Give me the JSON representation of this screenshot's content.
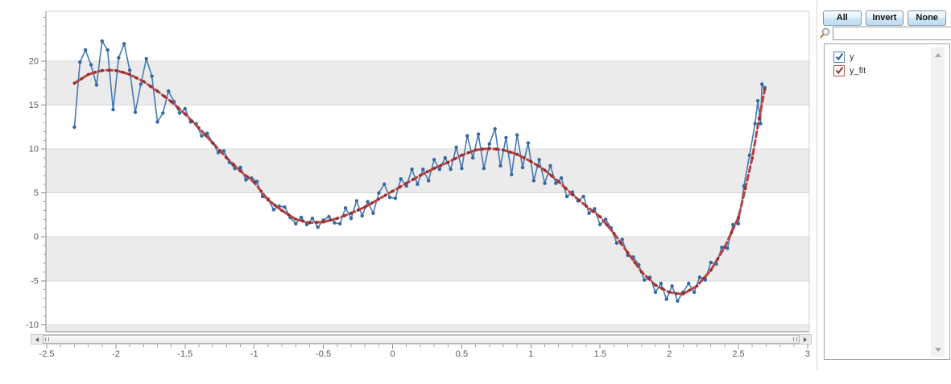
{
  "panel": {
    "buttons": [
      {
        "label": "All"
      },
      {
        "label": "Invert"
      },
      {
        "label": "None"
      }
    ],
    "search": {
      "value": "",
      "placeholder": ""
    },
    "series_list": [
      {
        "label": "y",
        "checked": true,
        "box_color": "#5b87c5",
        "check_color": "#2c5d9d"
      },
      {
        "label": "y_fit",
        "checked": true,
        "box_color": "#c0504d",
        "check_color": "#9e3032"
      }
    ]
  },
  "chart_data": {
    "type": "line",
    "title": "",
    "xlabel": "",
    "ylabel": "",
    "legend_position": "right-panel-checklist",
    "grid": "horizontal-bands",
    "band_color": "#ebebeb",
    "gridline_color": "#d9d9d9",
    "x_axis": {
      "min": -2.506,
      "max": 3.012,
      "major_ticks": [
        -2.5,
        -2,
        -1.5,
        -1,
        -0.5,
        0,
        0.5,
        1,
        1.5,
        2,
        2.5,
        3
      ],
      "minor_step": 0.1
    },
    "y_axis": {
      "min": -10.8,
      "max": 25.7,
      "major_ticks": [
        -10,
        -5,
        0,
        5,
        10,
        15,
        20
      ],
      "minor_step": 1
    },
    "bands": [
      [
        20,
        15
      ],
      [
        10,
        5
      ],
      [
        0,
        -5
      ],
      [
        -10,
        -10.8
      ]
    ],
    "series": [
      {
        "name": "y",
        "color": "#4579b2",
        "marker_color": "#35689f",
        "style": "line-markers",
        "points": [
          [
            -2.3,
            12.5
          ],
          [
            -2.26,
            19.9
          ],
          [
            -2.22,
            21.3
          ],
          [
            -2.18,
            19.6
          ],
          [
            -2.14,
            17.3
          ],
          [
            -2.1,
            22.3
          ],
          [
            -2.06,
            21.3
          ],
          [
            -2.02,
            14.5
          ],
          [
            -1.98,
            20.4
          ],
          [
            -1.94,
            22.0
          ],
          [
            -1.9,
            19.0
          ],
          [
            -1.86,
            14.2
          ],
          [
            -1.82,
            17.4
          ],
          [
            -1.78,
            20.3
          ],
          [
            -1.74,
            18.3
          ],
          [
            -1.7,
            13.1
          ],
          [
            -1.66,
            14.1
          ],
          [
            -1.62,
            16.6
          ],
          [
            -1.58,
            15.4
          ],
          [
            -1.54,
            14.1
          ],
          [
            -1.5,
            14.6
          ],
          [
            -1.46,
            13.1
          ],
          [
            -1.42,
            12.9
          ],
          [
            -1.38,
            11.5
          ],
          [
            -1.34,
            11.8
          ],
          [
            -1.3,
            10.7
          ],
          [
            -1.26,
            9.6
          ],
          [
            -1.22,
            9.8
          ],
          [
            -1.18,
            8.5
          ],
          [
            -1.14,
            7.8
          ],
          [
            -1.1,
            7.9
          ],
          [
            -1.06,
            6.5
          ],
          [
            -1.02,
            6.7
          ],
          [
            -0.98,
            6.3
          ],
          [
            -0.94,
            4.6
          ],
          [
            -0.9,
            4.3
          ],
          [
            -0.86,
            3.1
          ],
          [
            -0.82,
            3.5
          ],
          [
            -0.78,
            3.4
          ],
          [
            -0.74,
            2.2
          ],
          [
            -0.7,
            1.5
          ],
          [
            -0.66,
            2.2
          ],
          [
            -0.62,
            1.4
          ],
          [
            -0.58,
            2.1
          ],
          [
            -0.54,
            1.1
          ],
          [
            -0.5,
            1.9
          ],
          [
            -0.46,
            2.3
          ],
          [
            -0.42,
            1.6
          ],
          [
            -0.38,
            1.5
          ],
          [
            -0.34,
            3.3
          ],
          [
            -0.3,
            2.1
          ],
          [
            -0.26,
            4.1
          ],
          [
            -0.22,
            2.4
          ],
          [
            -0.18,
            4.0
          ],
          [
            -0.14,
            2.7
          ],
          [
            -0.1,
            5.0
          ],
          [
            -0.06,
            6.0
          ],
          [
            -0.02,
            4.5
          ],
          [
            0.02,
            4.4
          ],
          [
            0.06,
            6.6
          ],
          [
            0.1,
            5.8
          ],
          [
            0.14,
            7.7
          ],
          [
            0.18,
            6.0
          ],
          [
            0.22,
            7.7
          ],
          [
            0.26,
            6.4
          ],
          [
            0.3,
            8.8
          ],
          [
            0.34,
            7.7
          ],
          [
            0.38,
            9.0
          ],
          [
            0.42,
            7.7
          ],
          [
            0.46,
            10.2
          ],
          [
            0.5,
            7.8
          ],
          [
            0.54,
            11.5
          ],
          [
            0.58,
            9.0
          ],
          [
            0.62,
            11.7
          ],
          [
            0.66,
            7.8
          ],
          [
            0.7,
            10.6
          ],
          [
            0.74,
            12.3
          ],
          [
            0.78,
            8.1
          ],
          [
            0.82,
            11.3
          ],
          [
            0.86,
            7.1
          ],
          [
            0.9,
            11.6
          ],
          [
            0.94,
            7.9
          ],
          [
            0.98,
            10.7
          ],
          [
            1.02,
            6.4
          ],
          [
            1.06,
            8.8
          ],
          [
            1.1,
            6.1
          ],
          [
            1.14,
            8.1
          ],
          [
            1.18,
            6.1
          ],
          [
            1.22,
            6.7
          ],
          [
            1.26,
            4.6
          ],
          [
            1.3,
            5.1
          ],
          [
            1.34,
            4.1
          ],
          [
            1.38,
            4.6
          ],
          [
            1.42,
            2.7
          ],
          [
            1.46,
            3.2
          ],
          [
            1.5,
            1.4
          ],
          [
            1.54,
            2.0
          ],
          [
            1.58,
            1.0
          ],
          [
            1.62,
            -0.7
          ],
          [
            1.66,
            -0.3
          ],
          [
            1.7,
            -2.1
          ],
          [
            1.74,
            -2.3
          ],
          [
            1.78,
            -3.2
          ],
          [
            1.82,
            -4.9
          ],
          [
            1.86,
            -4.6
          ],
          [
            1.9,
            -6.3
          ],
          [
            1.94,
            -5.3
          ],
          [
            1.98,
            -7.1
          ],
          [
            2.02,
            -5.6
          ],
          [
            2.06,
            -7.3
          ],
          [
            2.1,
            -6.3
          ],
          [
            2.14,
            -5.3
          ],
          [
            2.18,
            -6.3
          ],
          [
            2.22,
            -4.6
          ],
          [
            2.26,
            -4.9
          ],
          [
            2.3,
            -2.9
          ],
          [
            2.34,
            -3.1
          ],
          [
            2.38,
            -1.2
          ],
          [
            2.42,
            -1.3
          ],
          [
            2.46,
            1.4
          ],
          [
            2.5,
            1.5
          ],
          [
            2.54,
            5.8
          ],
          [
            2.58,
            9.3
          ],
          [
            2.62,
            12.9
          ],
          [
            2.64,
            15.5
          ],
          [
            2.66,
            12.9
          ],
          [
            2.67,
            17.4
          ],
          [
            2.69,
            17.0
          ]
        ]
      },
      {
        "name": "y_fit",
        "color": "#b74242",
        "marker_color": "#8f2f2f",
        "style": "dashed-line-markers",
        "points": [
          [
            -2.3,
            17.5
          ],
          [
            -2.25,
            18.0
          ],
          [
            -2.2,
            18.5
          ],
          [
            -2.15,
            18.75
          ],
          [
            -2.1,
            18.95
          ],
          [
            -2.05,
            19.0
          ],
          [
            -2.0,
            18.95
          ],
          [
            -1.95,
            18.75
          ],
          [
            -1.9,
            18.5
          ],
          [
            -1.85,
            18.1
          ],
          [
            -1.8,
            17.7
          ],
          [
            -1.75,
            17.15
          ],
          [
            -1.7,
            16.6
          ],
          [
            -1.65,
            16.0
          ],
          [
            -1.6,
            15.4
          ],
          [
            -1.55,
            14.7
          ],
          [
            -1.5,
            14.0
          ],
          [
            -1.45,
            13.2
          ],
          [
            -1.4,
            12.4
          ],
          [
            -1.35,
            11.55
          ],
          [
            -1.3,
            10.7
          ],
          [
            -1.25,
            9.85
          ],
          [
            -1.2,
            9.0
          ],
          [
            -1.15,
            8.25
          ],
          [
            -1.1,
            7.5
          ],
          [
            -1.05,
            6.85
          ],
          [
            -1.0,
            6.2
          ],
          [
            -0.95,
            5.2
          ],
          [
            -0.9,
            4.2
          ],
          [
            -0.85,
            3.6
          ],
          [
            -0.8,
            3.0
          ],
          [
            -0.75,
            2.5
          ],
          [
            -0.7,
            2.0
          ],
          [
            -0.65,
            1.8
          ],
          [
            -0.6,
            1.6
          ],
          [
            -0.55,
            1.65
          ],
          [
            -0.5,
            1.7
          ],
          [
            -0.45,
            1.9
          ],
          [
            -0.4,
            2.1
          ],
          [
            -0.35,
            2.4
          ],
          [
            -0.3,
            2.7
          ],
          [
            -0.25,
            3.05
          ],
          [
            -0.2,
            3.4
          ],
          [
            -0.15,
            3.85
          ],
          [
            -0.1,
            4.3
          ],
          [
            -0.05,
            4.75
          ],
          [
            0.0,
            5.2
          ],
          [
            0.05,
            5.65
          ],
          [
            0.1,
            6.1
          ],
          [
            0.15,
            6.55
          ],
          [
            0.2,
            7.0
          ],
          [
            0.25,
            7.4
          ],
          [
            0.3,
            7.8
          ],
          [
            0.35,
            8.15
          ],
          [
            0.4,
            8.5
          ],
          [
            0.45,
            8.9
          ],
          [
            0.5,
            9.3
          ],
          [
            0.55,
            9.6
          ],
          [
            0.6,
            9.9
          ],
          [
            0.65,
            10.0
          ],
          [
            0.7,
            10.05
          ],
          [
            0.75,
            10.0
          ],
          [
            0.8,
            9.9
          ],
          [
            0.85,
            9.65
          ],
          [
            0.9,
            9.4
          ],
          [
            0.95,
            9.0
          ],
          [
            1.0,
            8.6
          ],
          [
            1.05,
            8.1
          ],
          [
            1.1,
            7.6
          ],
          [
            1.15,
            6.95
          ],
          [
            1.2,
            6.3
          ],
          [
            1.25,
            5.55
          ],
          [
            1.3,
            4.8
          ],
          [
            1.35,
            4.15
          ],
          [
            1.4,
            3.5
          ],
          [
            1.45,
            2.9
          ],
          [
            1.5,
            2.3
          ],
          [
            1.55,
            1.35
          ],
          [
            1.6,
            0.4
          ],
          [
            1.65,
            -0.7
          ],
          [
            1.7,
            -1.8
          ],
          [
            1.75,
            -2.9
          ],
          [
            1.8,
            -4.0
          ],
          [
            1.85,
            -4.75
          ],
          [
            1.9,
            -5.5
          ],
          [
            1.95,
            -5.9
          ],
          [
            2.0,
            -6.3
          ],
          [
            2.05,
            -6.45
          ],
          [
            2.1,
            -6.5
          ],
          [
            2.15,
            -6.05
          ],
          [
            2.2,
            -5.6
          ],
          [
            2.25,
            -4.7
          ],
          [
            2.3,
            -3.8
          ],
          [
            2.35,
            -2.5
          ],
          [
            2.4,
            -1.2
          ],
          [
            2.45,
            0.5
          ],
          [
            2.5,
            2.2
          ],
          [
            2.55,
            5.5
          ],
          [
            2.6,
            9.0
          ],
          [
            2.65,
            13.5
          ],
          [
            2.69,
            16.8
          ]
        ]
      }
    ]
  }
}
